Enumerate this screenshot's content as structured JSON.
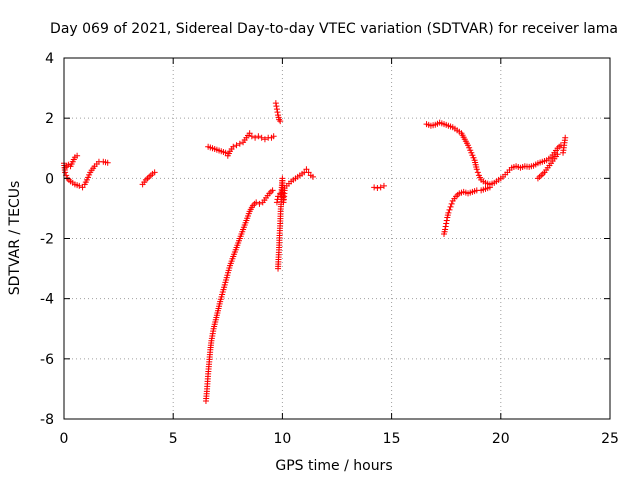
{
  "chart_data": {
    "type": "scatter",
    "title": "Day 069 of 2021, Sidereal Day-to-day VTEC variation (SDTVAR) for receiver lama",
    "xlabel": "GPS time / hours",
    "ylabel": "SDTVAR / TECUs",
    "xlim": [
      0,
      25
    ],
    "ylim": [
      -8,
      4
    ],
    "xticks": [
      0,
      5,
      10,
      15,
      20,
      25
    ],
    "yticks": [
      -8,
      -6,
      -4,
      -2,
      0,
      2,
      4
    ],
    "x_tick_labels": [
      "0",
      "5",
      "10",
      "15",
      "20",
      "25"
    ],
    "y_tick_labels": [
      "-8",
      "-6",
      "-4",
      "-2",
      "0",
      "2",
      "4"
    ],
    "grid": true,
    "marker": "+",
    "marker_color": "#ff0000",
    "series": [
      {
        "segments": [
          [
            [
              0.0,
              0.5
            ],
            [
              0.05,
              0.2
            ],
            [
              0.15,
              0.0
            ],
            [
              0.3,
              -0.1
            ],
            [
              0.5,
              -0.2
            ],
            [
              0.7,
              -0.25
            ],
            [
              0.85,
              -0.3
            ],
            [
              0.95,
              -0.2
            ],
            [
              1.05,
              -0.05
            ],
            [
              1.2,
              0.2
            ],
            [
              1.4,
              0.4
            ],
            [
              1.6,
              0.55
            ],
            [
              1.8,
              0.55
            ],
            [
              2.0,
              0.52
            ]
          ],
          [
            [
              0.05,
              0.35
            ],
            [
              0.2,
              0.45
            ],
            [
              0.3,
              0.4
            ],
            [
              0.4,
              0.55
            ],
            [
              0.5,
              0.7
            ],
            [
              0.6,
              0.75
            ]
          ],
          [
            [
              3.6,
              -0.2
            ],
            [
              3.75,
              -0.05
            ],
            [
              3.9,
              0.05
            ],
            [
              4.05,
              0.15
            ],
            [
              4.15,
              0.2
            ]
          ],
          [
            [
              6.5,
              -7.4
            ],
            [
              6.55,
              -7.0
            ],
            [
              6.6,
              -6.5
            ],
            [
              6.65,
              -6.1
            ],
            [
              6.7,
              -5.7
            ],
            [
              6.75,
              -5.4
            ],
            [
              6.85,
              -5.0
            ],
            [
              6.95,
              -4.7
            ],
            [
              7.05,
              -4.4
            ],
            [
              7.15,
              -4.1
            ],
            [
              7.3,
              -3.7
            ],
            [
              7.45,
              -3.3
            ],
            [
              7.6,
              -2.9
            ],
            [
              7.75,
              -2.6
            ],
            [
              7.9,
              -2.3
            ],
            [
              8.05,
              -2.0
            ],
            [
              8.2,
              -1.7
            ],
            [
              8.35,
              -1.4
            ],
            [
              8.5,
              -1.1
            ],
            [
              8.65,
              -0.9
            ],
            [
              8.8,
              -0.8
            ],
            [
              8.95,
              -0.85
            ],
            [
              9.1,
              -0.8
            ],
            [
              9.25,
              -0.65
            ],
            [
              9.4,
              -0.5
            ],
            [
              9.55,
              -0.4
            ]
          ],
          [
            [
              6.6,
              1.05
            ],
            [
              6.8,
              1.0
            ],
            [
              7.0,
              0.95
            ],
            [
              7.2,
              0.9
            ],
            [
              7.4,
              0.85
            ],
            [
              7.5,
              0.75
            ],
            [
              7.6,
              0.9
            ],
            [
              7.75,
              1.05
            ],
            [
              7.9,
              1.1
            ],
            [
              8.05,
              1.15
            ],
            [
              8.2,
              1.2
            ],
            [
              8.35,
              1.35
            ],
            [
              8.5,
              1.5
            ],
            [
              8.6,
              1.4
            ],
            [
              8.75,
              1.35
            ],
            [
              8.9,
              1.4
            ],
            [
              9.05,
              1.35
            ],
            [
              9.2,
              1.3
            ],
            [
              9.35,
              1.35
            ],
            [
              9.5,
              1.35
            ],
            [
              9.6,
              1.4
            ]
          ],
          [
            [
              9.7,
              2.5
            ],
            [
              9.75,
              2.3
            ],
            [
              9.8,
              2.1
            ],
            [
              9.85,
              1.95
            ],
            [
              9.9,
              1.9
            ]
          ],
          [
            [
              9.8,
              -3.0
            ],
            [
              9.82,
              -2.7
            ],
            [
              9.85,
              -2.3
            ],
            [
              9.87,
              -1.9
            ],
            [
              9.9,
              -1.5
            ],
            [
              9.92,
              -1.1
            ],
            [
              9.95,
              -0.7
            ],
            [
              9.97,
              -0.3
            ],
            [
              10.0,
              0.0
            ],
            [
              10.02,
              -0.4
            ],
            [
              10.05,
              -0.8
            ],
            [
              10.08,
              -0.6
            ],
            [
              10.1,
              -0.4
            ]
          ],
          [
            [
              9.75,
              -0.8
            ],
            [
              9.8,
              -0.6
            ],
            [
              9.9,
              -0.5
            ],
            [
              10.0,
              -0.4
            ],
            [
              10.2,
              -0.25
            ],
            [
              10.4,
              -0.1
            ],
            [
              10.6,
              0.0
            ],
            [
              10.8,
              0.1
            ],
            [
              11.0,
              0.2
            ],
            [
              11.1,
              0.3
            ],
            [
              11.2,
              0.2
            ],
            [
              11.3,
              0.1
            ],
            [
              11.4,
              0.05
            ]
          ],
          [
            [
              14.2,
              -0.3
            ],
            [
              14.35,
              -0.32
            ],
            [
              14.5,
              -0.3
            ],
            [
              14.65,
              -0.25
            ]
          ],
          [
            [
              16.6,
              1.8
            ],
            [
              16.8,
              1.75
            ],
            [
              17.0,
              1.78
            ],
            [
              17.2,
              1.85
            ],
            [
              17.4,
              1.8
            ],
            [
              17.6,
              1.75
            ],
            [
              17.8,
              1.7
            ],
            [
              18.0,
              1.6
            ],
            [
              18.2,
              1.5
            ],
            [
              18.35,
              1.3
            ],
            [
              18.5,
              1.1
            ],
            [
              18.65,
              0.85
            ],
            [
              18.8,
              0.6
            ],
            [
              18.9,
              0.3
            ],
            [
              19.0,
              0.1
            ],
            [
              19.1,
              -0.05
            ],
            [
              19.3,
              -0.15
            ],
            [
              19.5,
              -0.2
            ],
            [
              19.7,
              -0.15
            ],
            [
              19.9,
              -0.05
            ],
            [
              20.1,
              0.05
            ],
            [
              20.3,
              0.2
            ],
            [
              20.5,
              0.35
            ],
            [
              20.7,
              0.4
            ],
            [
              20.9,
              0.35
            ],
            [
              21.1,
              0.4
            ],
            [
              21.3,
              0.38
            ],
            [
              21.5,
              0.42
            ],
            [
              21.7,
              0.5
            ],
            [
              21.9,
              0.55
            ],
            [
              22.1,
              0.6
            ],
            [
              22.3,
              0.7
            ],
            [
              22.45,
              0.85
            ],
            [
              22.6,
              1.0
            ],
            [
              22.75,
              1.1
            ]
          ],
          [
            [
              17.4,
              -1.85
            ],
            [
              17.45,
              -1.7
            ],
            [
              17.5,
              -1.5
            ],
            [
              17.55,
              -1.3
            ],
            [
              17.6,
              -1.15
            ],
            [
              17.7,
              -0.95
            ],
            [
              17.8,
              -0.75
            ],
            [
              17.95,
              -0.6
            ],
            [
              18.1,
              -0.5
            ],
            [
              18.3,
              -0.45
            ],
            [
              18.5,
              -0.5
            ],
            [
              18.7,
              -0.45
            ],
            [
              18.9,
              -0.4
            ],
            [
              19.1,
              -0.4
            ],
            [
              19.3,
              -0.35
            ],
            [
              19.5,
              -0.3
            ]
          ],
          [
            [
              21.7,
              0.0
            ],
            [
              21.85,
              0.1
            ],
            [
              22.0,
              0.2
            ],
            [
              22.15,
              0.35
            ],
            [
              22.3,
              0.5
            ],
            [
              22.45,
              0.65
            ],
            [
              22.6,
              0.8
            ]
          ],
          [
            [
              22.85,
              0.85
            ],
            [
              22.95,
              1.35
            ]
          ]
        ]
      }
    ]
  }
}
